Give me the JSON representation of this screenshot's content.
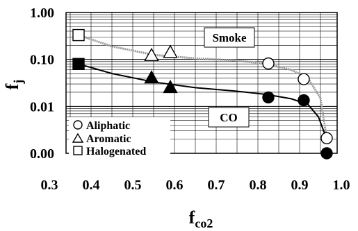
{
  "chart_data": {
    "type": "scatter",
    "xlabel": "f",
    "xlabel_sub": "co2",
    "ylabel": "f",
    "ylabel_sub": "j",
    "x_ticks": [
      "0.3",
      "0.4",
      "0.5",
      "0.6",
      "0.7",
      "0.8",
      "0.9",
      "1.0"
    ],
    "y_ticks": [
      "0.00",
      "0.01",
      "0.10",
      "1.00"
    ],
    "xlim": [
      0.34,
      0.99
    ],
    "ylim_log10": [
      -3,
      0
    ],
    "y_scale": "log",
    "grid": true,
    "legend_position": "bottom-left",
    "legend": [
      {
        "marker": "circle",
        "label": "Aliphatic"
      },
      {
        "marker": "triangle",
        "label": "Aromatic"
      },
      {
        "marker": "square",
        "label": "Halogenated"
      }
    ],
    "annotations": [
      {
        "text": "Smoke",
        "box": true
      },
      {
        "text": "CO",
        "box": true
      }
    ],
    "series": [
      {
        "name": "Smoke",
        "marker_fill": "#ffffff",
        "points": [
          {
            "x": 0.37,
            "y": 0.33,
            "marker": "square"
          },
          {
            "x": 0.545,
            "y": 0.12,
            "marker": "triangle"
          },
          {
            "x": 0.59,
            "y": 0.14,
            "marker": "triangle"
          },
          {
            "x": 0.825,
            "y": 0.082,
            "marker": "circle"
          },
          {
            "x": 0.91,
            "y": 0.038,
            "marker": "circle"
          },
          {
            "x": 0.965,
            "y": 0.0021,
            "marker": "circle"
          }
        ],
        "curve": [
          [
            0.37,
            0.33
          ],
          [
            0.45,
            0.19
          ],
          [
            0.55,
            0.125
          ],
          [
            0.65,
            0.105
          ],
          [
            0.75,
            0.095
          ],
          [
            0.82,
            0.08
          ],
          [
            0.88,
            0.06
          ],
          [
            0.92,
            0.04
          ],
          [
            0.95,
            0.015
          ],
          [
            0.965,
            0.0021
          ]
        ],
        "curve_color": "#9a9a9a"
      },
      {
        "name": "CO",
        "marker_fill": "#000000",
        "points": [
          {
            "x": 0.37,
            "y": 0.08,
            "marker": "square"
          },
          {
            "x": 0.545,
            "y": 0.04,
            "marker": "triangle"
          },
          {
            "x": 0.59,
            "y": 0.025,
            "marker": "triangle"
          },
          {
            "x": 0.825,
            "y": 0.0155,
            "marker": "circle"
          },
          {
            "x": 0.91,
            "y": 0.0135,
            "marker": "circle"
          },
          {
            "x": 0.965,
            "y": 0.001,
            "marker": "circle"
          }
        ],
        "curve": [
          [
            0.37,
            0.08
          ],
          [
            0.45,
            0.05
          ],
          [
            0.55,
            0.033
          ],
          [
            0.65,
            0.025
          ],
          [
            0.75,
            0.021
          ],
          [
            0.82,
            0.018
          ],
          [
            0.88,
            0.0145
          ],
          [
            0.92,
            0.011
          ],
          [
            0.945,
            0.006
          ],
          [
            0.965,
            0.002
          ]
        ],
        "curve_color": "#000000"
      }
    ]
  }
}
